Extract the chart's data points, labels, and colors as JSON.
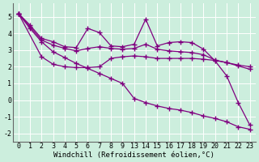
{
  "bg_color": "#cceedd",
  "grid_color": "#ffffff",
  "line_color": "#800080",
  "marker": "+",
  "markersize": 4,
  "linewidth": 0.9,
  "tick_labels": [
    "0",
    "1",
    "2",
    "3",
    "4",
    "5",
    "6",
    "7",
    "8",
    "9",
    "13",
    "14",
    "15",
    "16",
    "17",
    "18",
    "19",
    "20",
    "21",
    "22",
    "23"
  ],
  "line1_idx": [
    0,
    1,
    2,
    3,
    4,
    5,
    6,
    7,
    8,
    9,
    10,
    11,
    12,
    13,
    14,
    15,
    16,
    17,
    18,
    19,
    20
  ],
  "line1_y": [
    5.2,
    4.5,
    3.7,
    3.5,
    3.2,
    3.15,
    4.3,
    4.05,
    3.25,
    3.2,
    3.35,
    4.85,
    3.25,
    3.45,
    3.5,
    3.45,
    3.05,
    2.35,
    1.45,
    -0.15,
    -1.5
  ],
  "line2_idx": [
    0,
    1,
    2,
    3,
    4,
    5,
    6,
    7,
    8,
    9,
    10,
    11,
    12,
    13,
    14,
    15,
    16,
    17,
    18,
    19,
    20
  ],
  "line2_y": [
    5.2,
    4.4,
    3.6,
    3.3,
    3.1,
    2.95,
    3.1,
    3.2,
    3.1,
    3.05,
    3.1,
    3.35,
    3.05,
    2.95,
    2.9,
    2.85,
    2.72,
    2.4,
    2.25,
    2.05,
    1.85
  ],
  "line3_idx": [
    0,
    2,
    3,
    4,
    5,
    6,
    7,
    8,
    9,
    10,
    11,
    12,
    13,
    14,
    15,
    16,
    17,
    18,
    19,
    20
  ],
  "line3_y": [
    5.2,
    2.6,
    2.15,
    2.0,
    1.95,
    1.95,
    2.0,
    2.5,
    2.6,
    2.65,
    2.6,
    2.5,
    2.5,
    2.5,
    2.5,
    2.45,
    2.38,
    2.25,
    2.1,
    2.0
  ],
  "line4_idx": [
    0,
    1,
    2,
    3,
    4,
    5,
    6,
    7,
    8,
    9,
    10,
    11,
    12,
    13,
    14,
    15,
    16,
    17,
    18,
    19,
    20
  ],
  "line4_y": [
    5.2,
    4.3,
    3.5,
    2.9,
    2.55,
    2.2,
    1.9,
    1.6,
    1.3,
    1.0,
    0.1,
    -0.15,
    -0.35,
    -0.5,
    -0.6,
    -0.75,
    -0.95,
    -1.1,
    -1.3,
    -1.6,
    -1.75
  ],
  "xlim": [
    -0.5,
    20.5
  ],
  "ylim": [
    -2.5,
    5.8
  ],
  "yticks": [
    -2,
    -1,
    0,
    1,
    2,
    3,
    4,
    5
  ],
  "xlabel": "Windchill (Refroidissement éolien,°C)",
  "xlabel_fontsize": 6.5,
  "tick_fontsize": 6.0
}
